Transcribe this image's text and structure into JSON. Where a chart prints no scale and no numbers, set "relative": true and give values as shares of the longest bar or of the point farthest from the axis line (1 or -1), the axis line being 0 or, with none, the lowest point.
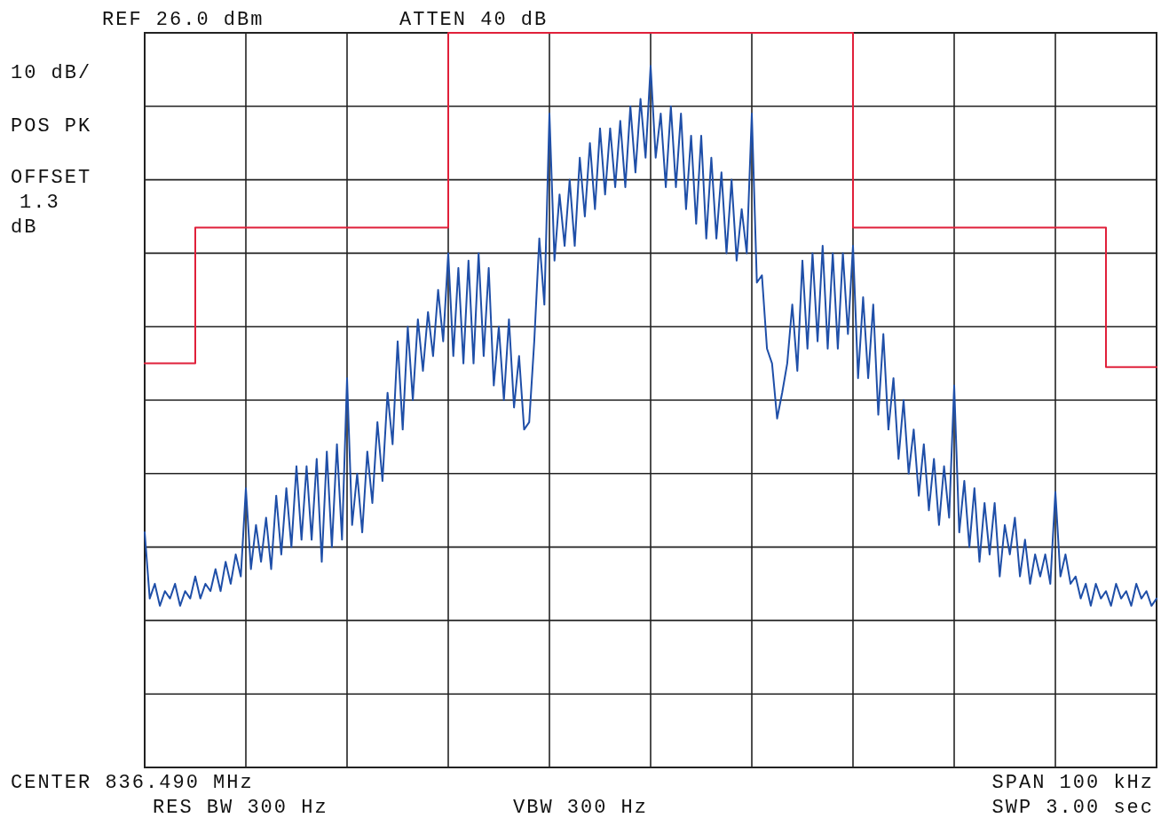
{
  "chart_data": {
    "type": "line",
    "relative": true,
    "grid": true,
    "line_style": "solid",
    "marker": "none",
    "annotations": [
      "REF 26.0 dBm",
      "ATTEN 40 dB",
      "10 dB/",
      "POS PK",
      "OFFSET 1.3 dB",
      "CENTER 836.490 MHz",
      "RES BW 300 Hz",
      "VBW 300 Hz",
      "SPAN 100 kHz",
      "SWP 3.00 sec"
    ],
    "categories": [
      null,
      null,
      null,
      null,
      null,
      null,
      null,
      null,
      null,
      null,
      null,
      null,
      null,
      null,
      null,
      null,
      null,
      null,
      null,
      null,
      null,
      null,
      null,
      null,
      null,
      null,
      null,
      null,
      null,
      null,
      null,
      null,
      null,
      null,
      null,
      null,
      null,
      null,
      null,
      null,
      null,
      null,
      null,
      null,
      null,
      null,
      null,
      null,
      null,
      null,
      null,
      null,
      null,
      null,
      null,
      null,
      null,
      null,
      null,
      null,
      null,
      null,
      null,
      null,
      null,
      null,
      null,
      null,
      null,
      null,
      null,
      null,
      null,
      null,
      null,
      null,
      null,
      null,
      null,
      null,
      null,
      null,
      null,
      null,
      null,
      null,
      null,
      null,
      null,
      null,
      null,
      null,
      null,
      null,
      null,
      null,
      null,
      null,
      null,
      null,
      null,
      null,
      null,
      null,
      null,
      null,
      null,
      null,
      null,
      null,
      null,
      null,
      null,
      null,
      null,
      null,
      null,
      null,
      null,
      null,
      null,
      null,
      null,
      null,
      null,
      null,
      null,
      null,
      null,
      null,
      null,
      null,
      null,
      null,
      null,
      null,
      null,
      null,
      null,
      null,
      null,
      null,
      null,
      null,
      null,
      null,
      null,
      null,
      null,
      null,
      null,
      null,
      null,
      null,
      null,
      null,
      null,
      null,
      null,
      null,
      null,
      null,
      null,
      null,
      null,
      null,
      null,
      null,
      null,
      null,
      null,
      null,
      null,
      null,
      null,
      null,
      null,
      null,
      null,
      null,
      null,
      null,
      null,
      null,
      null,
      null,
      null,
      null,
      null,
      null,
      null,
      null,
      null,
      null,
      null,
      null,
      null,
      null,
      null,
      null,
      null
    ],
    "series": [
      {
        "color": "#1f4fa8",
        "values": [
          0.32,
          0.23,
          0.25,
          0.22,
          0.24,
          0.23,
          0.25,
          0.22,
          0.24,
          0.23,
          0.26,
          0.23,
          0.25,
          0.24,
          0.27,
          0.24,
          0.28,
          0.25,
          0.29,
          0.26,
          0.38,
          0.27,
          0.33,
          0.28,
          0.34,
          0.27,
          0.37,
          0.29,
          0.38,
          0.3,
          0.41,
          0.31,
          0.41,
          0.31,
          0.42,
          0.28,
          0.43,
          0.3,
          0.44,
          0.31,
          0.53,
          0.33,
          0.4,
          0.32,
          0.43,
          0.36,
          0.47,
          0.39,
          0.51,
          0.44,
          0.58,
          0.46,
          0.6,
          0.5,
          0.61,
          0.54,
          0.62,
          0.56,
          0.65,
          0.58,
          0.7,
          0.56,
          0.68,
          0.55,
          0.69,
          0.55,
          0.7,
          0.56,
          0.68,
          0.52,
          0.6,
          0.5,
          0.61,
          0.49,
          0.56,
          0.46,
          0.47,
          0.58,
          0.72,
          0.63,
          0.89,
          0.69,
          0.78,
          0.71,
          0.8,
          0.71,
          0.83,
          0.75,
          0.85,
          0.76,
          0.87,
          0.78,
          0.87,
          0.79,
          0.88,
          0.79,
          0.9,
          0.81,
          0.91,
          0.83,
          0.955,
          0.83,
          0.89,
          0.79,
          0.9,
          0.79,
          0.89,
          0.76,
          0.86,
          0.74,
          0.86,
          0.72,
          0.83,
          0.72,
          0.81,
          0.7,
          0.8,
          0.69,
          0.76,
          0.7,
          0.89,
          0.66,
          0.67,
          0.57,
          0.55,
          0.475,
          0.51,
          0.55,
          0.63,
          0.54,
          0.69,
          0.57,
          0.7,
          0.58,
          0.71,
          0.57,
          0.7,
          0.57,
          0.7,
          0.59,
          0.71,
          0.53,
          0.64,
          0.53,
          0.63,
          0.48,
          0.59,
          0.46,
          0.53,
          0.42,
          0.5,
          0.4,
          0.46,
          0.37,
          0.44,
          0.35,
          0.42,
          0.33,
          0.41,
          0.34,
          0.52,
          0.32,
          0.39,
          0.3,
          0.38,
          0.28,
          0.36,
          0.29,
          0.36,
          0.26,
          0.33,
          0.29,
          0.34,
          0.26,
          0.31,
          0.25,
          0.29,
          0.26,
          0.29,
          0.25,
          0.375,
          0.26,
          0.29,
          0.25,
          0.26,
          0.23,
          0.25,
          0.22,
          0.25,
          0.23,
          0.24,
          0.22,
          0.25,
          0.23,
          0.24,
          0.22,
          0.25,
          0.23,
          0.24,
          0.22,
          0.23
        ]
      },
      {
        "type": "step",
        "color": "#e0203a",
        "values": [
          0.55,
          0.55,
          0.55,
          0.55,
          0.55,
          0.55,
          0.55,
          0.55,
          0.55,
          0.55,
          0.735,
          0.735,
          0.735,
          0.735,
          0.735,
          0.735,
          0.735,
          0.735,
          0.735,
          0.735,
          0.735,
          0.735,
          0.735,
          0.735,
          0.735,
          0.735,
          0.735,
          0.735,
          0.735,
          0.735,
          0.735,
          0.735,
          0.735,
          0.735,
          0.735,
          0.735,
          0.735,
          0.735,
          0.735,
          0.735,
          0.735,
          0.735,
          0.735,
          0.735,
          0.735,
          0.735,
          0.735,
          0.735,
          0.735,
          0.735,
          0.735,
          0.735,
          0.735,
          0.735,
          0.735,
          0.735,
          0.735,
          0.735,
          0.735,
          0.735,
          1,
          1,
          1,
          1,
          1,
          1,
          1,
          1,
          1,
          1,
          1,
          1,
          1,
          1,
          1,
          1,
          1,
          1,
          1,
          1,
          1,
          1,
          1,
          1,
          1,
          1,
          1,
          1,
          1,
          1,
          1,
          1,
          1,
          1,
          1,
          1,
          1,
          1,
          1,
          1,
          1,
          1,
          1,
          1,
          1,
          1,
          1,
          1,
          1,
          1,
          1,
          1,
          1,
          1,
          1,
          1,
          1,
          1,
          1,
          1,
          1,
          1,
          1,
          1,
          1,
          1,
          1,
          1,
          1,
          1,
          1,
          1,
          1,
          1,
          1,
          1,
          1,
          1,
          1,
          1,
          0.735,
          0.735,
          0.735,
          0.735,
          0.735,
          0.735,
          0.735,
          0.735,
          0.735,
          0.735,
          0.735,
          0.735,
          0.735,
          0.735,
          0.735,
          0.735,
          0.735,
          0.735,
          0.735,
          0.735,
          0.735,
          0.735,
          0.735,
          0.735,
          0.735,
          0.735,
          0.735,
          0.735,
          0.735,
          0.735,
          0.735,
          0.735,
          0.735,
          0.735,
          0.735,
          0.735,
          0.735,
          0.735,
          0.735,
          0.735,
          0.735,
          0.735,
          0.735,
          0.735,
          0.735,
          0.735,
          0.735,
          0.735,
          0.735,
          0.735,
          0.545,
          0.545,
          0.545,
          0.545,
          0.545,
          0.545,
          0.545,
          0.545,
          0.545,
          0.545,
          0.545
        ]
      }
    ]
  }
}
